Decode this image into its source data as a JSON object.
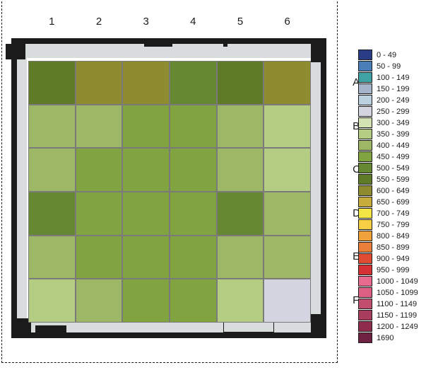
{
  "figure": {
    "background_color": "#ffffff",
    "frame_color": "#1b1b1b",
    "wall_fill_color": "#d9dcdd"
  },
  "columns": [
    "1",
    "2",
    "3",
    "4",
    "5",
    "6"
  ],
  "rows": [
    "A",
    "B",
    "C",
    "D",
    "E",
    "F"
  ],
  "heatmap": {
    "type": "heatmap",
    "grid_lines_color": "#7a7a7a",
    "cells": [
      [
        "#5f7b28",
        "#8e8c2f",
        "#8e8c2f",
        "#678833",
        "#5f7b28",
        "#8e8c2f"
      ],
      [
        "#9db767",
        "#9db767",
        "#81a340",
        "#81a340",
        "#9db767",
        "#b5cc83"
      ],
      [
        "#9db767",
        "#81a340",
        "#81a340",
        "#81a340",
        "#9db767",
        "#b5cc83"
      ],
      [
        "#678833",
        "#81a340",
        "#81a340",
        "#81a340",
        "#678833",
        "#9db767"
      ],
      [
        "#9db767",
        "#81a340",
        "#81a340",
        "#81a340",
        "#9db767",
        "#9db767"
      ],
      [
        "#b5cc83",
        "#9db767",
        "#81a340",
        "#81a340",
        "#b5cc83",
        "#d3d6e1"
      ]
    ]
  },
  "legend": {
    "title": "",
    "entries": [
      {
        "label": "0 - 49",
        "color": "#2b3c87"
      },
      {
        "label": "50 - 99",
        "color": "#4a7eb8"
      },
      {
        "label": "100 - 149",
        "color": "#3fa3a6"
      },
      {
        "label": "150 - 199",
        "color": "#a6b4cb"
      },
      {
        "label": "200 - 249",
        "color": "#bcd1e0"
      },
      {
        "label": "250 - 299",
        "color": "#d3d6e1"
      },
      {
        "label": "300 - 349",
        "color": "#d2e2b3"
      },
      {
        "label": "350 - 399",
        "color": "#b5cc83"
      },
      {
        "label": "400 - 449",
        "color": "#9db767"
      },
      {
        "label": "450 - 499",
        "color": "#81a340"
      },
      {
        "label": "500 - 549",
        "color": "#678833"
      },
      {
        "label": "550 - 599",
        "color": "#5f7b28"
      },
      {
        "label": "600 - 649",
        "color": "#8e8c2f"
      },
      {
        "label": "650 - 699",
        "color": "#c6ac3b"
      },
      {
        "label": "700 - 749",
        "color": "#f2e645"
      },
      {
        "label": "750 - 799",
        "color": "#f6cf45"
      },
      {
        "label": "800 - 849",
        "color": "#f1a23a"
      },
      {
        "label": "850 - 899",
        "color": "#e97f38"
      },
      {
        "label": "900 - 949",
        "color": "#e04c32"
      },
      {
        "label": "950 - 999",
        "color": "#d63236"
      },
      {
        "label": "1000 - 1049",
        "color": "#e86a8f"
      },
      {
        "label": "1050 - 1099",
        "color": "#de5f84"
      },
      {
        "label": "1100 - 1149",
        "color": "#c14e6f"
      },
      {
        "label": "1150 - 1199",
        "color": "#a93d5e"
      },
      {
        "label": "1200 - 1249",
        "color": "#8f2c4e"
      },
      {
        "label": "1690",
        "color": "#6f2142"
      }
    ]
  }
}
